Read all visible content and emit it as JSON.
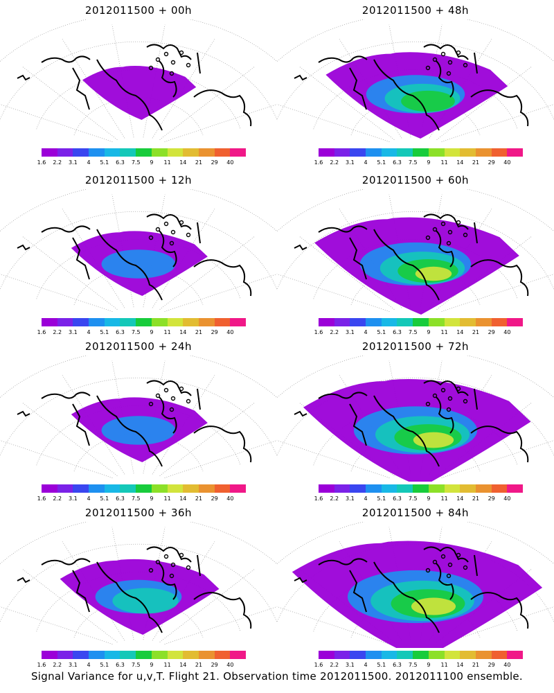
{
  "colorbar": {
    "colors": [
      "#9b00d8",
      "#7b22e8",
      "#3a46f0",
      "#1e90f0",
      "#18b8e6",
      "#14c8b8",
      "#18cc3c",
      "#8ce028",
      "#d2e43c",
      "#e2bc32",
      "#ea9230",
      "#f06030",
      "#f01888"
    ],
    "labels": [
      "1.6",
      "2.2",
      "3.1",
      "4",
      "5.1",
      "6.3",
      "7.5",
      "9",
      "11",
      "14",
      "21",
      "29",
      "40"
    ]
  },
  "panels": [
    {
      "title": "2012011500 + 00h",
      "level": 0
    },
    {
      "title": "2012011500 + 48h",
      "level": 3
    },
    {
      "title": "2012011500 + 12h",
      "level": 1
    },
    {
      "title": "2012011500 + 60h",
      "level": 4
    },
    {
      "title": "2012011500 + 24h",
      "level": 1
    },
    {
      "title": "2012011500 + 72h",
      "level": 5
    },
    {
      "title": "2012011500 + 36h",
      "level": 2
    },
    {
      "title": "2012011500 + 84h",
      "level": 6
    }
  ],
  "footer": "Signal Variance for u,v,T. Flight 21. Observation time 2012011500. 2012011100 ensemble."
}
